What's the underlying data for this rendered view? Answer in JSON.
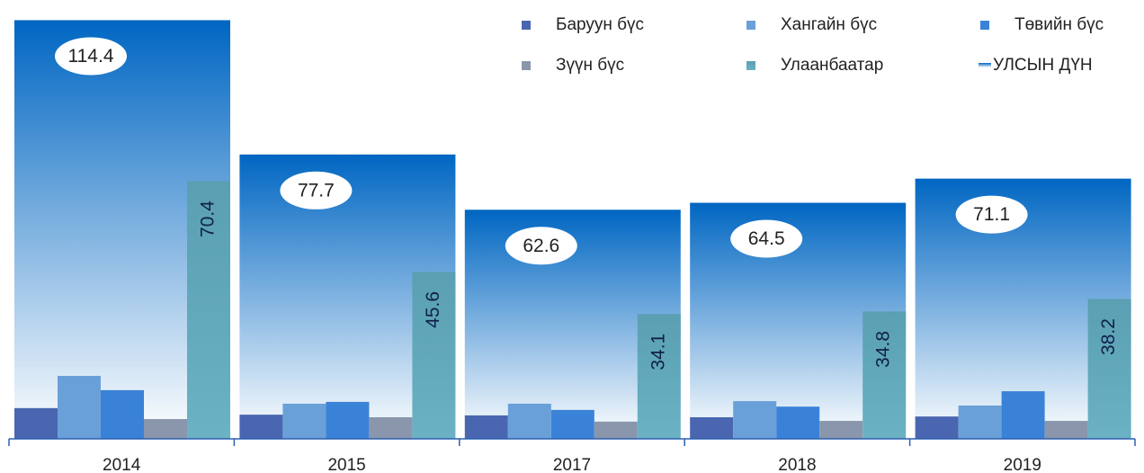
{
  "chart_data": {
    "type": "bar",
    "categories": [
      "2014",
      "2015",
      "2017",
      "2018",
      "2019"
    ],
    "ylim": [
      0,
      115
    ],
    "series": [
      {
        "name": "Баруун бүс",
        "color": "#4a66b0",
        "values": [
          8.4,
          6.6,
          6.4,
          5.9,
          6.1
        ]
      },
      {
        "name": "Хангайн бүс",
        "color": "#6aa0d8",
        "values": [
          17.2,
          9.6,
          9.6,
          10.3,
          9.1
        ]
      },
      {
        "name": "Төвийн бүс",
        "color": "#3a82d8",
        "values": [
          13.3,
          10.1,
          7.9,
          8.8,
          13.0
        ]
      },
      {
        "name": "Зүүн бүс",
        "color": "#8a96ab",
        "values": [
          5.4,
          5.9,
          4.7,
          4.9,
          4.9
        ]
      },
      {
        "name": "Улаанбаатар",
        "color": "#5a9fb2",
        "color2": "#6ab2c4",
        "values": [
          70.4,
          45.6,
          34.1,
          34.8,
          38.2
        ],
        "show_labels": true
      },
      {
        "name": "УЛСЫН ДҮН",
        "color": "#0066c2",
        "color2": "#ffffff",
        "values": [
          114.4,
          77.7,
          62.6,
          64.5,
          71.1
        ],
        "background": true,
        "show_labels": true
      }
    ]
  }
}
